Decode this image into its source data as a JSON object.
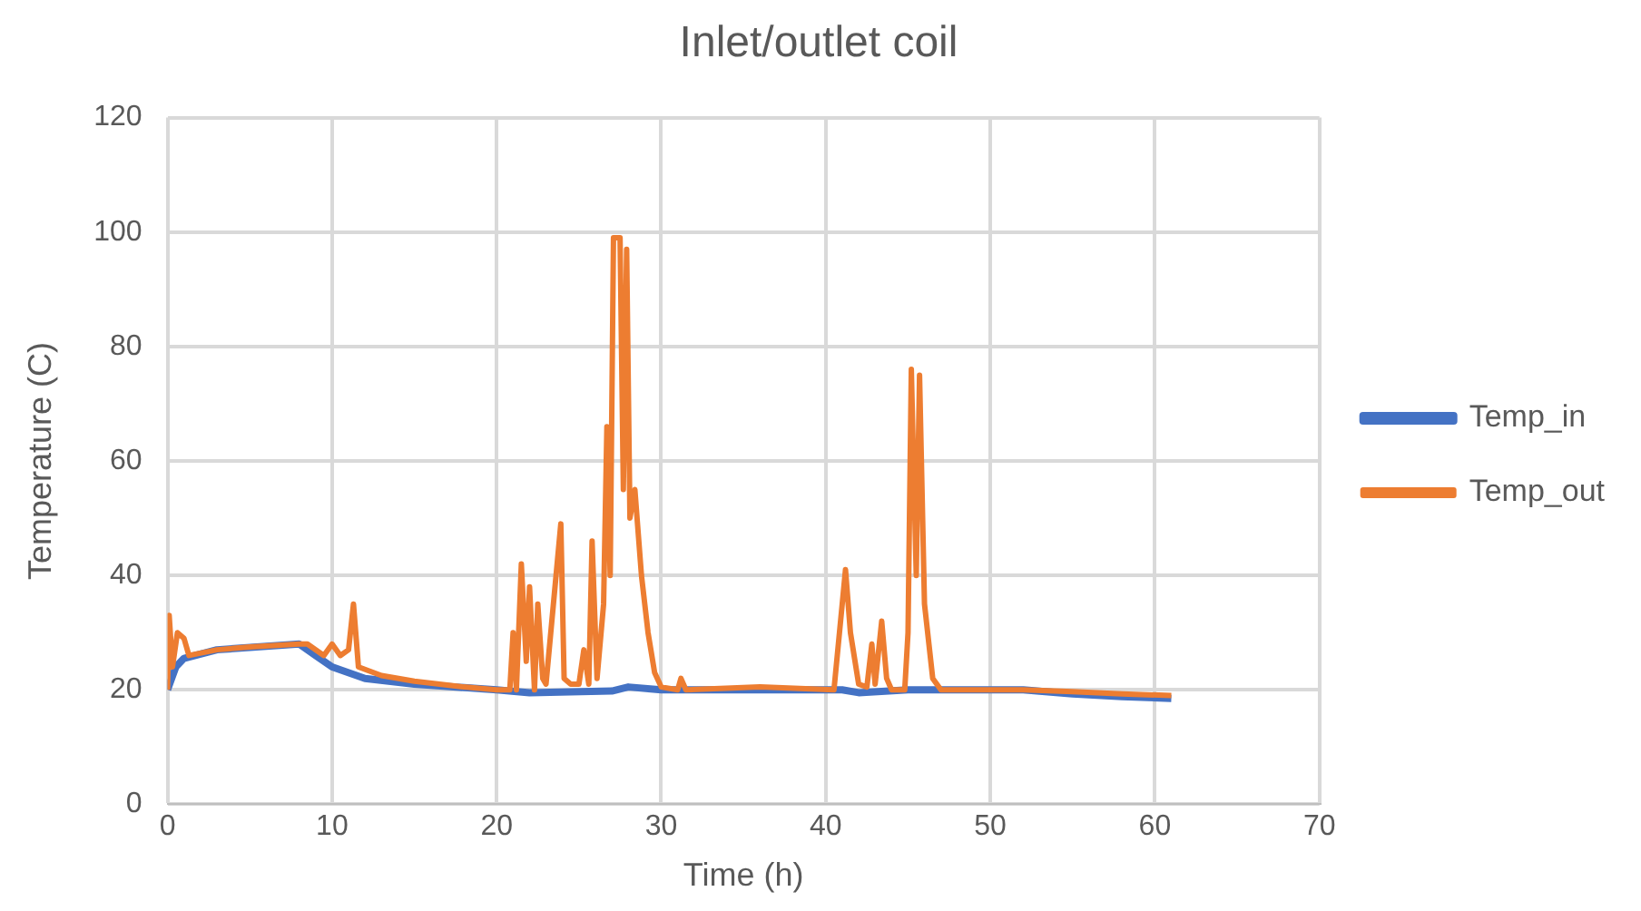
{
  "chart_data": {
    "type": "line",
    "title": "Inlet/outlet coil",
    "xlabel": "Time (h)",
    "ylabel": "Temperature (C)",
    "xlim": [
      0,
      70
    ],
    "xticks": [
      0,
      10,
      20,
      30,
      40,
      50,
      60,
      70
    ],
    "ylim": [
      0,
      120
    ],
    "yticks": [
      0,
      20,
      40,
      60,
      80,
      100,
      120
    ],
    "grid": true,
    "legend": "right",
    "marker": "none",
    "line_style": "solid",
    "series": [
      {
        "name": "Temp_in",
        "color": "#4472c4",
        "x": [
          0,
          0.5,
          1,
          3,
          8,
          9,
          10,
          12,
          15,
          20,
          22,
          27,
          28,
          30,
          41,
          42,
          45,
          46,
          52,
          55,
          58,
          61
        ],
        "values": [
          20,
          24,
          25.5,
          27,
          28,
          26,
          24,
          22,
          21,
          20,
          19.5,
          19.8,
          20.5,
          20,
          20,
          19.5,
          20,
          20,
          20,
          19.3,
          18.8,
          18.5
        ]
      },
      {
        "name": "Temp_out",
        "color": "#ed7d31",
        "x": [
          0,
          0.1,
          0.3,
          0.6,
          1,
          1.3,
          3,
          5,
          8,
          8.5,
          9.5,
          10,
          10.5,
          11,
          11.3,
          11.6,
          13,
          15,
          18,
          20,
          20.8,
          21,
          21.2,
          21.5,
          21.8,
          22,
          22.3,
          22.5,
          22.8,
          23,
          23.9,
          24.1,
          24.5,
          25,
          25.3,
          25.6,
          25.8,
          26.1,
          26.5,
          26.7,
          26.9,
          27.1,
          27.5,
          27.7,
          27.9,
          28.1,
          28.4,
          28.8,
          29.2,
          29.6,
          30,
          31,
          31.2,
          31.5,
          36,
          40.5,
          41,
          41.2,
          41.5,
          42,
          42.5,
          42.8,
          43,
          43.4,
          43.7,
          44,
          44.8,
          45,
          45.2,
          45.5,
          45.7,
          46,
          46.5,
          47,
          52,
          55,
          58,
          61
        ],
        "values": [
          20,
          33,
          24,
          30,
          29,
          26,
          27,
          27.5,
          28,
          28,
          26,
          28,
          26,
          27,
          35,
          24,
          22.5,
          21.5,
          20.5,
          20,
          20,
          30,
          20,
          42,
          25,
          38,
          20,
          35,
          22,
          21,
          49,
          22,
          21,
          21,
          27,
          21,
          46,
          22,
          35,
          66,
          40,
          99,
          99,
          55,
          97,
          50,
          55,
          40,
          30,
          23,
          20.5,
          20,
          22,
          20,
          20.5,
          20,
          35,
          41,
          30,
          21,
          20.5,
          28,
          21,
          32,
          22,
          20,
          20,
          30,
          76,
          40,
          75,
          35,
          22,
          20,
          20,
          19.7,
          19.3,
          19
        ]
      }
    ]
  }
}
